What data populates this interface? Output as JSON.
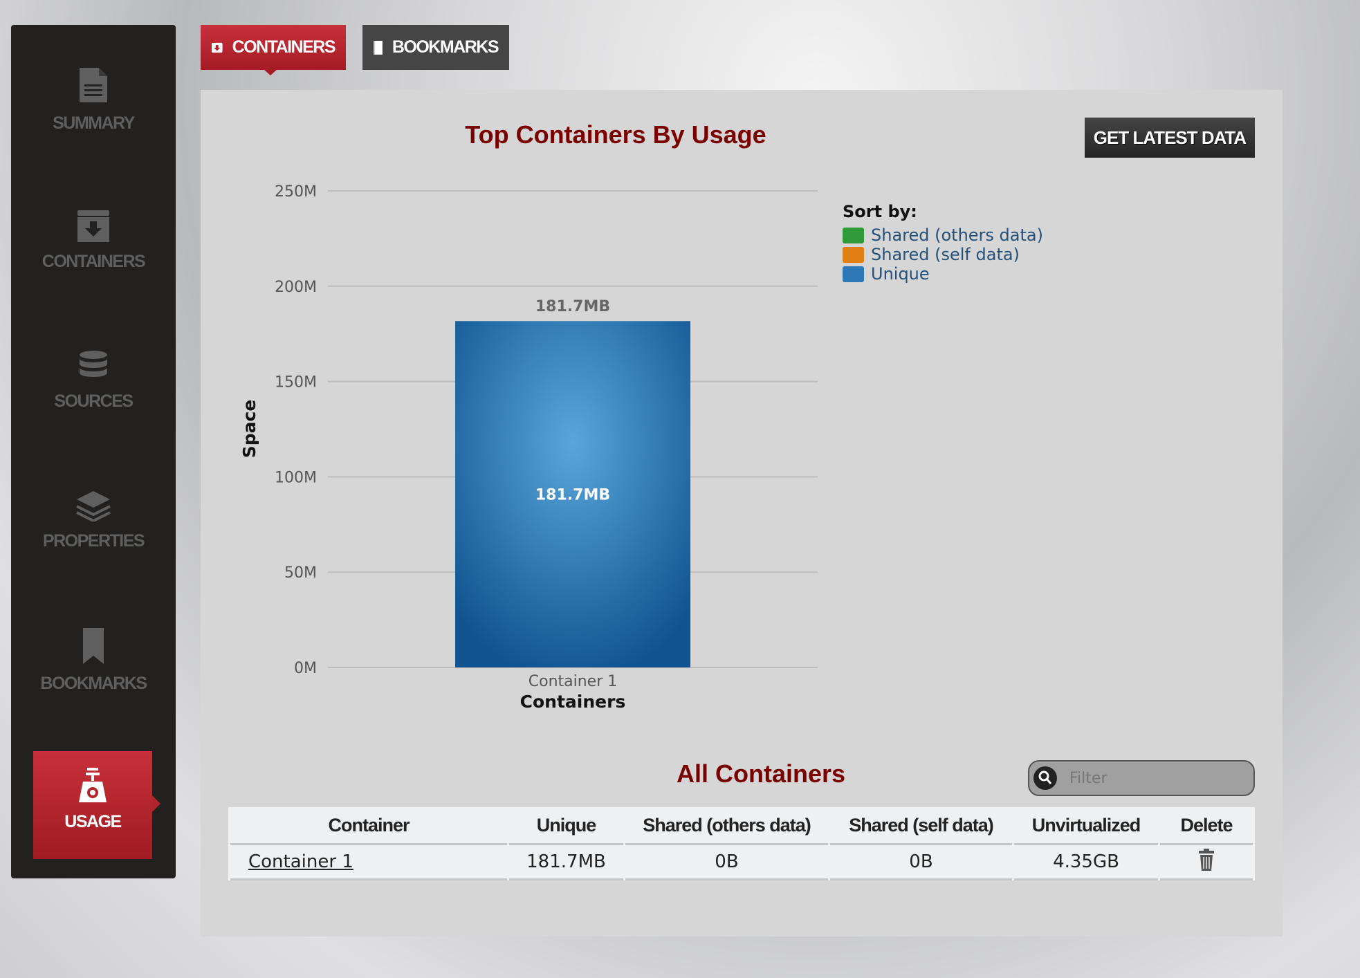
{
  "sidebar": {
    "items": [
      {
        "label": "SUMMARY",
        "icon": "document-icon"
      },
      {
        "label": "CONTAINERS",
        "icon": "archive-download-icon"
      },
      {
        "label": "SOURCES",
        "icon": "database-icon"
      },
      {
        "label": "PROPERTIES",
        "icon": "layers-icon"
      },
      {
        "label": "BOOKMARKS",
        "icon": "bookmark-icon"
      },
      {
        "label": "USAGE",
        "icon": "scale-icon",
        "active": true
      }
    ]
  },
  "tabs": [
    {
      "label": "CONTAINERS",
      "active": true
    },
    {
      "label": "BOOKMARKS"
    }
  ],
  "main": {
    "get_latest_label": "GET LATEST DATA",
    "table_title": "All Containers",
    "filter_placeholder": "Filter"
  },
  "chart_data": {
    "type": "bar",
    "title": "Top Containers By Usage",
    "xlabel": "Containers",
    "ylabel": "Space",
    "categories": [
      "Container 1"
    ],
    "series": [
      {
        "name": "Unique",
        "values": [
          181.7
        ]
      }
    ],
    "data_labels": [
      "181.7MB"
    ],
    "ylim": [
      0,
      250
    ],
    "yticks": [
      "0M",
      "50M",
      "100M",
      "150M",
      "200M",
      "250M"
    ],
    "grid": true,
    "legend_position": "right",
    "legend": {
      "title": "Sort by:",
      "items": [
        {
          "label": "Shared (others data)",
          "color": "#2e9a3a"
        },
        {
          "label": "Shared (self data)",
          "color": "#e07f14"
        },
        {
          "label": "Unique",
          "color": "#2f78b8"
        }
      ]
    }
  },
  "table": {
    "headers": [
      "Container",
      "Unique",
      "Shared (others data)",
      "Shared (self data)",
      "Unvirtualized",
      "Delete"
    ],
    "rows": [
      {
        "container": "Container 1",
        "unique": "181.7MB",
        "shared_others": "0B",
        "shared_self": "0B",
        "unvirtualized": "4.35GB"
      }
    ]
  }
}
